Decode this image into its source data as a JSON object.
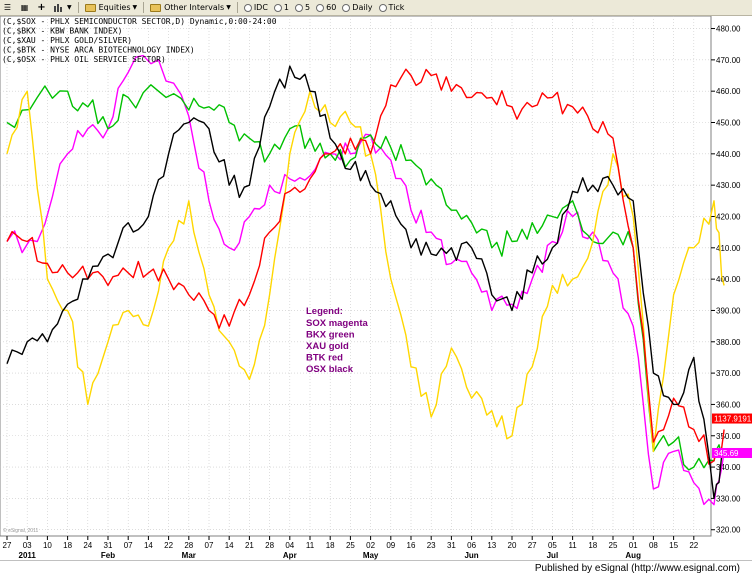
{
  "toolbar": {
    "equities_label": "Equities",
    "intervals_label": "Other Intervals",
    "items": [
      "IDC",
      "1",
      "5",
      "60",
      "Daily",
      "Tick"
    ]
  },
  "header_lines": [
    "(C,$SOX - PHLX SEMICONDUCTOR SECTOR,D) Dynamic,0:00-24:00",
    "(C,$BKX - KBW BANK INDEX)",
    "(C,$XAU - PHLX GOLD/SILVER)",
    "(C,$BTK - NYSE ARCA BIOTECHNOLOGY INDEX)",
    "(C,$OSX - PHLX OIL SERVICE SECTOR)"
  ],
  "legend": {
    "title": "Legend:",
    "items": [
      {
        "text": "SOX magenta",
        "color": "#FF00FF"
      },
      {
        "text": "BKX green",
        "color": "#00C000"
      },
      {
        "text": "XAU gold",
        "color": "#FFD700"
      },
      {
        "text": "BTK red",
        "color": "#FF0000"
      },
      {
        "text": "OSX black",
        "color": "#000000"
      }
    ]
  },
  "price_tags": [
    {
      "text": "1137.9191",
      "color": "#FF0000",
      "y": 355.5
    },
    {
      "text": "345.69",
      "color": "#FF00FF",
      "y": 344.5
    }
  ],
  "watermark": "© eSignal, 2011",
  "footer": "Published by eSignal (http://www.esignal.com)",
  "chart_data": {
    "type": "line",
    "x_tick_labels": [
      "27",
      "03",
      "10",
      "18",
      "24",
      "31",
      "07",
      "14",
      "22",
      "28",
      "07",
      "14",
      "21",
      "28",
      "04",
      "11",
      "18",
      "25",
      "02",
      "09",
      "16",
      "23",
      "31",
      "06",
      "13",
      "20",
      "27",
      "05",
      "11",
      "18",
      "25",
      "01",
      "08",
      "15",
      "22"
    ],
    "month_labels": [
      {
        "text": "2011",
        "at": 1
      },
      {
        "text": "Feb",
        "at": 5
      },
      {
        "text": "Mar",
        "at": 9
      },
      {
        "text": "Apr",
        "at": 14
      },
      {
        "text": "May",
        "at": 18
      },
      {
        "text": "Jun",
        "at": 23
      },
      {
        "text": "Jul",
        "at": 27
      },
      {
        "text": "Aug",
        "at": 31
      }
    ],
    "y_ticks": [
      480,
      470,
      460,
      450,
      440,
      430,
      420,
      410,
      400,
      390,
      380,
      370,
      360,
      350,
      340,
      330,
      320
    ],
    "ylim": [
      318,
      484
    ],
    "grid": true,
    "series": [
      {
        "name": "SOX",
        "color": "#FF00FF",
        "points": [
          [
            0,
            412
          ],
          [
            1.5,
            412
          ],
          [
            3,
            440
          ],
          [
            4,
            448
          ],
          [
            5,
            448
          ],
          [
            6,
            466
          ],
          [
            7.5,
            470
          ],
          [
            9,
            452
          ],
          [
            10,
            425
          ],
          [
            11,
            410
          ],
          [
            12,
            420
          ],
          [
            13,
            430
          ],
          [
            14,
            432
          ],
          [
            15,
            433
          ],
          [
            16,
            440
          ],
          [
            17,
            440
          ],
          [
            18,
            446
          ],
          [
            19,
            438
          ],
          [
            20,
            422
          ],
          [
            21,
            415
          ],
          [
            22,
            405
          ],
          [
            23,
            402
          ],
          [
            24,
            390
          ],
          [
            25,
            392
          ],
          [
            26,
            400
          ],
          [
            27,
            412
          ],
          [
            28,
            420
          ],
          [
            29,
            415
          ],
          [
            30,
            402
          ],
          [
            31,
            385
          ],
          [
            32,
            333
          ],
          [
            33,
            345
          ],
          [
            34,
            335
          ],
          [
            35,
            328
          ],
          [
            35.5,
            345
          ]
        ]
      },
      {
        "name": "BKX",
        "color": "#00C000",
        "points": [
          [
            0,
            450
          ],
          [
            1.5,
            458
          ],
          [
            3,
            460
          ],
          [
            4,
            455
          ],
          [
            5,
            448
          ],
          [
            6,
            458
          ],
          [
            7.5,
            460
          ],
          [
            9,
            454
          ],
          [
            10,
            455
          ],
          [
            11,
            450
          ],
          [
            12,
            445
          ],
          [
            13,
            440
          ],
          [
            14,
            448
          ],
          [
            15,
            445
          ],
          [
            16,
            440
          ],
          [
            17,
            438
          ],
          [
            18,
            446
          ],
          [
            19,
            442
          ],
          [
            20,
            438
          ],
          [
            21,
            432
          ],
          [
            22,
            422
          ],
          [
            23,
            418
          ],
          [
            24,
            410
          ],
          [
            25,
            412
          ],
          [
            26,
            418
          ],
          [
            27,
            420
          ],
          [
            28,
            425
          ],
          [
            29,
            412
          ],
          [
            30,
            415
          ],
          [
            31,
            410
          ],
          [
            32,
            345
          ],
          [
            33,
            348
          ],
          [
            34,
            340
          ],
          [
            35,
            342
          ],
          [
            35.5,
            346
          ]
        ]
      },
      {
        "name": "XAU",
        "color": "#FFD700",
        "points": [
          [
            0,
            440
          ],
          [
            1,
            460
          ],
          [
            2,
            400
          ],
          [
            3,
            390
          ],
          [
            4,
            360
          ],
          [
            5,
            380
          ],
          [
            6,
            390
          ],
          [
            7,
            385
          ],
          [
            8,
            410
          ],
          [
            9,
            425
          ],
          [
            10,
            395
          ],
          [
            11,
            380
          ],
          [
            12,
            368
          ],
          [
            13,
            395
          ],
          [
            14,
            440
          ],
          [
            15,
            460
          ],
          [
            16,
            450
          ],
          [
            17,
            450
          ],
          [
            18,
            440
          ],
          [
            19,
            400
          ],
          [
            20,
            372
          ],
          [
            21,
            356
          ],
          [
            22,
            378
          ],
          [
            23,
            362
          ],
          [
            24,
            358
          ],
          [
            25,
            350
          ],
          [
            26,
            372
          ],
          [
            27,
            398
          ],
          [
            28,
            400
          ],
          [
            29,
            412
          ],
          [
            30,
            440
          ],
          [
            31,
            420
          ],
          [
            32,
            345
          ],
          [
            33,
            395
          ],
          [
            34,
            410
          ],
          [
            35,
            425
          ],
          [
            35.5,
            398
          ]
        ]
      },
      {
        "name": "BTK",
        "color": "#FF0000",
        "points": [
          [
            0,
            412
          ],
          [
            1,
            412
          ],
          [
            2,
            405
          ],
          [
            3,
            402
          ],
          [
            4,
            400
          ],
          [
            5,
            398
          ],
          [
            6,
            402
          ],
          [
            7,
            402
          ],
          [
            8,
            400
          ],
          [
            9,
            395
          ],
          [
            10,
            390
          ],
          [
            11,
            385
          ],
          [
            12,
            395
          ],
          [
            13,
            415
          ],
          [
            14,
            428
          ],
          [
            15,
            432
          ],
          [
            16,
            440
          ],
          [
            17,
            445
          ],
          [
            18,
            440
          ],
          [
            19,
            462
          ],
          [
            20,
            465
          ],
          [
            21,
            465
          ],
          [
            22,
            460
          ],
          [
            23,
            458
          ],
          [
            24,
            458
          ],
          [
            25,
            455
          ],
          [
            26,
            455
          ],
          [
            27,
            458
          ],
          [
            28,
            455
          ],
          [
            29,
            448
          ],
          [
            30,
            445
          ],
          [
            31,
            410
          ],
          [
            32,
            348
          ],
          [
            33,
            362
          ],
          [
            34,
            352
          ],
          [
            35,
            342
          ],
          [
            35.5,
            352
          ]
        ]
      },
      {
        "name": "OSX",
        "color": "#000000",
        "points": [
          [
            0,
            373
          ],
          [
            1,
            380
          ],
          [
            2,
            380
          ],
          [
            3,
            392
          ],
          [
            4,
            400
          ],
          [
            5,
            408
          ],
          [
            6,
            418
          ],
          [
            7,
            420
          ],
          [
            8,
            440
          ],
          [
            9,
            450
          ],
          [
            10,
            448
          ],
          [
            11,
            430
          ],
          [
            12,
            430
          ],
          [
            13,
            455
          ],
          [
            14,
            468
          ],
          [
            15,
            460
          ],
          [
            16,
            445
          ],
          [
            17,
            435
          ],
          [
            18,
            430
          ],
          [
            19,
            425
          ],
          [
            20,
            410
          ],
          [
            21,
            408
          ],
          [
            22,
            410
          ],
          [
            23,
            410
          ],
          [
            24,
            395
          ],
          [
            25,
            390
          ],
          [
            26,
            402
          ],
          [
            27,
            410
          ],
          [
            28,
            428
          ],
          [
            29,
            430
          ],
          [
            30,
            430
          ],
          [
            31,
            425
          ],
          [
            32,
            370
          ],
          [
            33,
            360
          ],
          [
            34,
            375
          ],
          [
            35,
            330
          ],
          [
            35.5,
            345
          ]
        ]
      }
    ]
  }
}
